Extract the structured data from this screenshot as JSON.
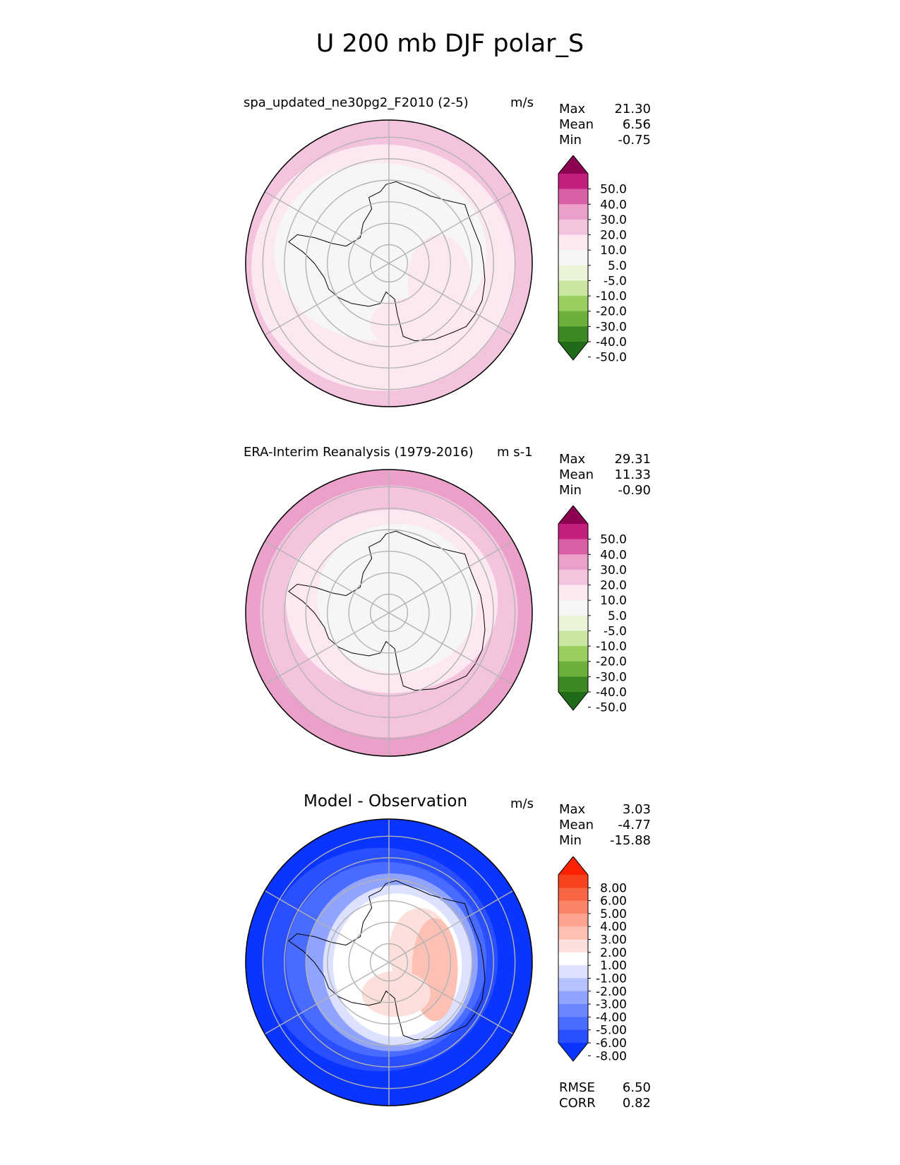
{
  "figure": {
    "title": "U 200 mb DJF polar_S"
  },
  "panels": [
    {
      "title": "spa_updated_ne30pg2_F2010 (2-5)",
      "units": "m/s",
      "stats": [
        {
          "label": "Max",
          "value": "21.30"
        },
        {
          "label": "Mean",
          "value": "6.56"
        },
        {
          "label": "Min",
          "value": "-0.75"
        }
      ]
    },
    {
      "title": "ERA-Interim Reanalysis (1979-2016)",
      "units": "m s-1",
      "stats": [
        {
          "label": "Max",
          "value": "29.31"
        },
        {
          "label": "Mean",
          "value": "11.33"
        },
        {
          "label": "Min",
          "value": "-0.90"
        }
      ]
    },
    {
      "title": "Model - Observation",
      "units": "m/s",
      "stats": [
        {
          "label": "Max",
          "value": "3.03"
        },
        {
          "label": "Mean",
          "value": "-4.77"
        },
        {
          "label": "Min",
          "value": "-15.88"
        }
      ],
      "footer": [
        {
          "label": "RMSE",
          "value": "6.50"
        },
        {
          "label": "CORR",
          "value": "0.82"
        }
      ]
    }
  ],
  "colors": {
    "field": [
      "#1f6b1a",
      "#3d8a23",
      "#6ab03a",
      "#9acf5f",
      "#c8e6a0",
      "#e9f4d8",
      "#f6f6f6",
      "#fce8f1",
      "#f4c4de",
      "#eaa0c9",
      "#d95ea6",
      "#c41e7e",
      "#8e0252"
    ],
    "diff": [
      "#0a34ff",
      "#2a4fff",
      "#4a6bff",
      "#6c86ff",
      "#90a4ff",
      "#b5c2ff",
      "#dbe1ff",
      "#ffffff",
      "#fde0db",
      "#fcc1b4",
      "#fca28d",
      "#fb8467",
      "#f96443",
      "#f6421d",
      "#ff2200"
    ]
  },
  "chart_data": [
    {
      "type": "heatmap",
      "projection": "south-polar-stereographic",
      "title": "spa_updated_ne30pg2_F2010 (2-5)",
      "units": "m/s",
      "colorbar_levels": [
        -50,
        -40,
        -30,
        -20,
        -10,
        -5,
        5,
        10,
        20,
        30,
        40,
        50
      ],
      "colorbar_labels": [
        "50.0",
        "40.0",
        "30.0",
        "20.0",
        "10.0",
        "5.0",
        "-5.0",
        "-10.0",
        "-20.0",
        "-30.0",
        "-40.0",
        "-50.0"
      ],
      "max": 21.3,
      "mean": 6.56,
      "min": -0.75
    },
    {
      "type": "heatmap",
      "projection": "south-polar-stereographic",
      "title": "ERA-Interim Reanalysis (1979-2016)",
      "units": "m s-1",
      "colorbar_levels": [
        -50,
        -40,
        -30,
        -20,
        -10,
        -5,
        5,
        10,
        20,
        30,
        40,
        50
      ],
      "colorbar_labels": [
        "50.0",
        "40.0",
        "30.0",
        "20.0",
        "10.0",
        "5.0",
        "-5.0",
        "-10.0",
        "-20.0",
        "-30.0",
        "-40.0",
        "-50.0"
      ],
      "max": 29.31,
      "mean": 11.33,
      "min": -0.9
    },
    {
      "type": "heatmap",
      "projection": "south-polar-stereographic",
      "title": "Model - Observation",
      "units": "m/s",
      "colorbar_levels": [
        -8,
        -6,
        -5,
        -4,
        -3,
        -2,
        -1,
        1,
        2,
        3,
        4,
        5,
        6,
        8
      ],
      "colorbar_labels": [
        "8.00",
        "6.00",
        "5.00",
        "4.00",
        "3.00",
        "2.00",
        "1.00",
        "-1.00",
        "-2.00",
        "-3.00",
        "-4.00",
        "-5.00",
        "-6.00",
        "-8.00"
      ],
      "max": 3.03,
      "mean": -4.77,
      "min": -15.88,
      "rmse": 6.5,
      "corr": 0.82
    }
  ]
}
